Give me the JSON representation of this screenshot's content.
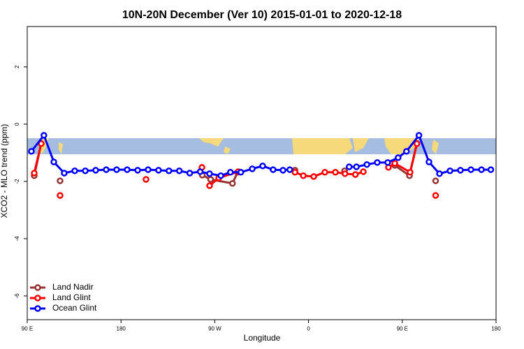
{
  "chart_data": {
    "type": "line",
    "title": "10N-20N December (Ver 10)   2015-01-01 to 2020-12-18",
    "x_label": "Longitude",
    "y_label": "XCO2 - MLO trend (ppm)",
    "xlim": [
      90,
      540
    ],
    "ylim": [
      -6.83,
      3.41
    ],
    "xticks": [
      {
        "value": 90,
        "label": "90 E"
      },
      {
        "value": 180,
        "label": "180"
      },
      {
        "value": 270,
        "label": "90 W"
      },
      {
        "value": 360,
        "label": "0"
      },
      {
        "value": 450,
        "label": "90 E"
      },
      {
        "value": 540,
        "label": "180"
      }
    ],
    "yticks": [
      2,
      0,
      -2,
      -4,
      -6
    ],
    "legend": "bottomleft",
    "series": [
      {
        "name": "Land Nadir",
        "color": "#993333",
        "x": [
          96.7,
          103.4,
          null,
          121.5,
          null,
          258,
          266,
          287,
          291.9,
          null,
          347,
          null,
          394.6,
          null,
          442.8,
          456.9,
          464,
          null,
          482
        ],
        "values": [
          -1.8,
          -0.68,
          null,
          -1.98,
          null,
          -1.78,
          -1.93,
          -2.07,
          -1.68,
          null,
          -1.61,
          null,
          -1.63,
          null,
          -1.44,
          -1.8,
          -0.68,
          null,
          -1.98
        ]
      },
      {
        "name": "Land Glint",
        "color": "#ff0000",
        "x": [
          96.7,
          103.4,
          null,
          121.5,
          null,
          204,
          null,
          257.7,
          null,
          265,
          273.8,
          292.5,
          null,
          347,
          355,
          365,
          375.7,
          385.8,
          395,
          405,
          412.6,
          null,
          436.7,
          442.8,
          457.5,
          464,
          null,
          482
        ],
        "values": [
          -1.71,
          -0.68,
          null,
          -2.49,
          null,
          -1.93,
          null,
          -1.51,
          null,
          -2.15,
          -1.88,
          -1.66,
          null,
          -1.68,
          -1.8,
          -1.83,
          -1.68,
          -1.68,
          -1.73,
          -1.76,
          -1.66,
          null,
          -1.51,
          -1.37,
          -1.68,
          -0.68,
          null,
          -2.49
        ]
      },
      {
        "name": "Ocean Glint",
        "color": "#0000ff",
        "x": [
          94,
          106,
          115.5,
          125.5,
          135.6,
          145.7,
          155.7,
          165.8,
          175.8,
          185.9,
          196,
          206,
          216,
          226,
          236,
          246,
          256,
          265,
          275.8,
          285,
          295,
          306,
          316,
          326,
          335.5,
          342,
          null,
          399,
          406,
          416,
          426,
          436,
          446,
          454,
          466,
          475.6,
          485.7,
          495.8,
          505.8,
          515.9,
          526,
          535
        ],
        "values": [
          -0.95,
          -0.39,
          -1.32,
          -1.71,
          -1.63,
          -1.63,
          -1.61,
          -1.59,
          -1.59,
          -1.59,
          -1.61,
          -1.59,
          -1.61,
          -1.63,
          -1.63,
          -1.71,
          -1.66,
          -1.73,
          -1.8,
          -1.68,
          -1.68,
          -1.56,
          -1.46,
          -1.59,
          -1.61,
          -1.59,
          null,
          -1.49,
          -1.49,
          -1.41,
          -1.34,
          -1.34,
          -1.17,
          -0.95,
          -0.39,
          -1.32,
          -1.73,
          -1.63,
          -1.61,
          -1.59,
          -1.59,
          -1.59
        ]
      }
    ]
  }
}
